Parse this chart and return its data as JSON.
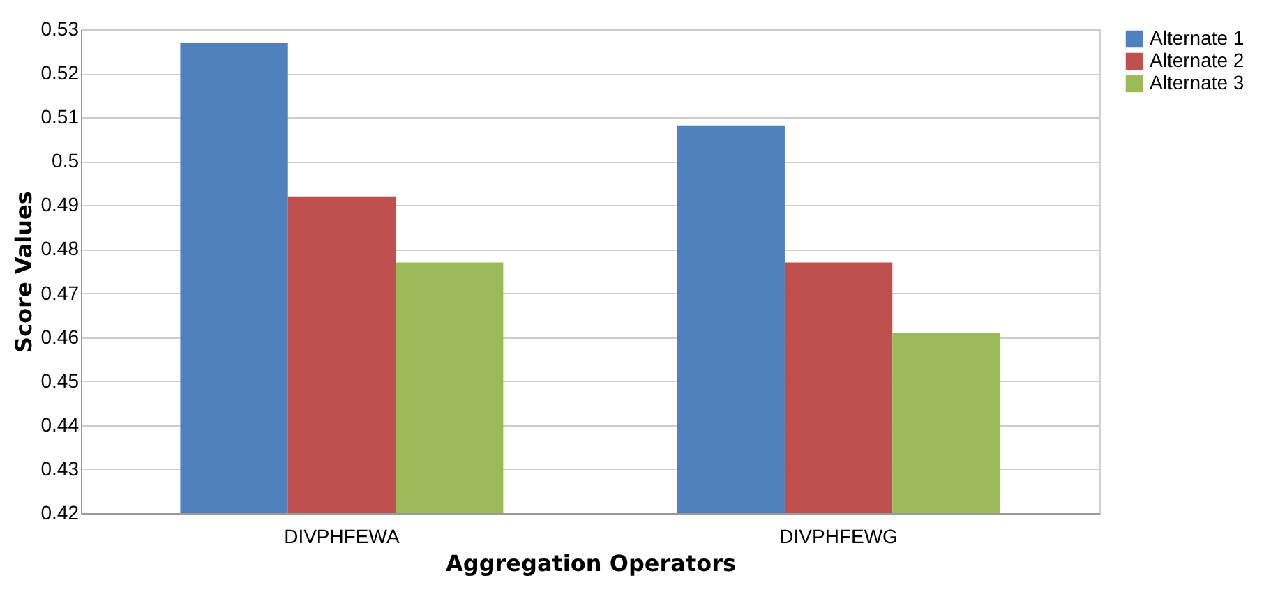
{
  "chart_data": {
    "type": "bar",
    "xlabel": "Aggregation Operators",
    "ylabel": "Score Values",
    "categories": [
      "DIVPHFEWA",
      "DIVPHFEWG"
    ],
    "series": [
      {
        "name": "Alternate 1",
        "color": "#4f81bd",
        "values": [
          0.527,
          0.508
        ]
      },
      {
        "name": "Alternate 2",
        "color": "#c0504d",
        "values": [
          0.492,
          0.477
        ]
      },
      {
        "name": "Alternate 3",
        "color": "#9bbb59",
        "values": [
          0.477,
          0.461
        ]
      }
    ],
    "ylim": [
      0.42,
      0.53
    ],
    "yticks": [
      0.42,
      0.43,
      0.44,
      0.45,
      0.46,
      0.47,
      0.48,
      0.49,
      0.5,
      0.51,
      0.52,
      0.53
    ],
    "grid": "y",
    "legend": "right"
  }
}
